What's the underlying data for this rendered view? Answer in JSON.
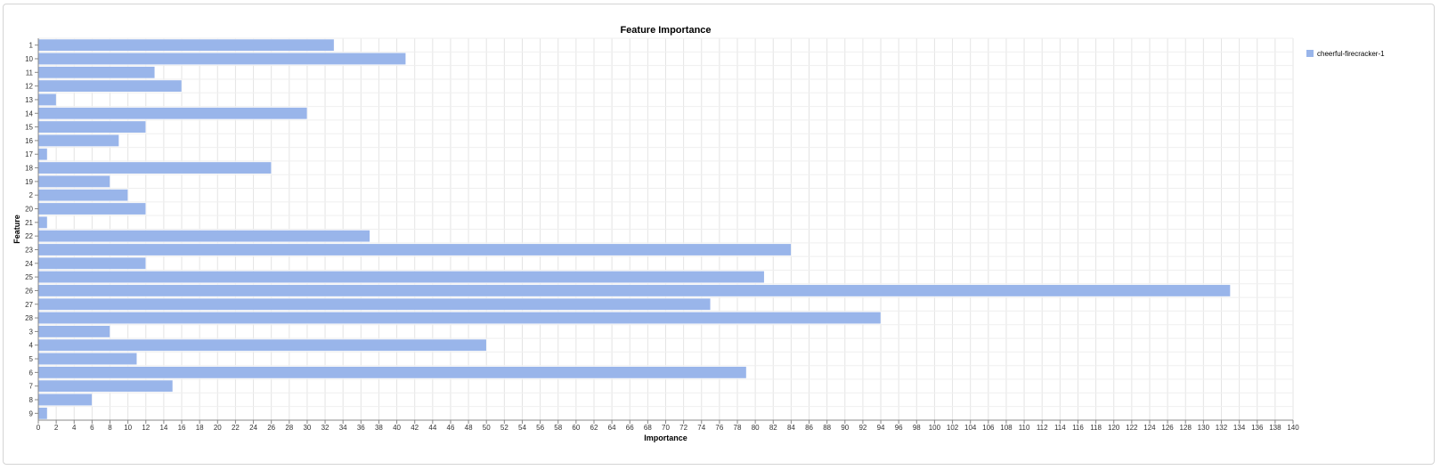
{
  "chart_data": {
    "type": "bar",
    "orientation": "horizontal",
    "title": "Feature Importance",
    "xlabel": "Importance",
    "ylabel": "Feature",
    "xlim": [
      0,
      140
    ],
    "x_tick_step": 2,
    "grid": true,
    "legend_position": "top-right",
    "categories": [
      "1",
      "10",
      "11",
      "12",
      "13",
      "14",
      "15",
      "16",
      "17",
      "18",
      "19",
      "2",
      "20",
      "21",
      "22",
      "23",
      "24",
      "25",
      "26",
      "27",
      "28",
      "3",
      "4",
      "5",
      "6",
      "7",
      "8",
      "9"
    ],
    "series": [
      {
        "name": "cheerful-firecracker-1",
        "color": "#99b5ea",
        "values": [
          33,
          41,
          13,
          16,
          2,
          30,
          12,
          9,
          1,
          26,
          8,
          10,
          12,
          1,
          37,
          84,
          12,
          81,
          133,
          75,
          94,
          8,
          50,
          11,
          79,
          15,
          6,
          1
        ]
      }
    ]
  }
}
